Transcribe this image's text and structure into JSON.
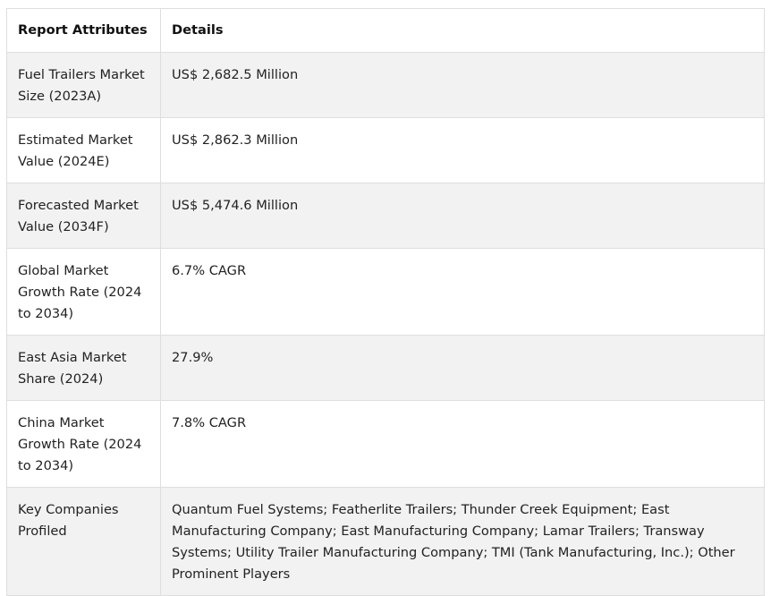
{
  "table": {
    "headers": [
      "Report Attributes",
      "Details"
    ],
    "rows": [
      {
        "attribute": "Fuel Trailers Market Size (2023A)",
        "detail": "US$ 2,682.5 Million"
      },
      {
        "attribute": "Estimated Market Value (2024E)",
        "detail": "US$ 2,862.3 Million"
      },
      {
        "attribute": "Forecasted Market Value (2034F)",
        "detail": "US$ 5,474.6 Million"
      },
      {
        "attribute": "Global Market Growth Rate (2024 to 2034)",
        "detail": "6.7% CAGR"
      },
      {
        "attribute": "East Asia Market Share (2024)",
        "detail": "27.9%"
      },
      {
        "attribute": "China Market Growth Rate (2024 to 2034)",
        "detail": "7.8% CAGR"
      },
      {
        "attribute": "Key Companies Profiled",
        "detail": "Quantum Fuel Systems; Featherlite Trailers; Thunder Creek Equipment; East Manufacturing Company; East Manufacturing Company; Lamar Trailers; Transway Systems; Utility Trailer Manufacturing Company; TMI (Tank Manufacturing, Inc.); Other Prominent Players"
      }
    ]
  },
  "colors": {
    "border": "#dedede",
    "shaded_row": "#f2f2f2",
    "text": "#222222"
  }
}
